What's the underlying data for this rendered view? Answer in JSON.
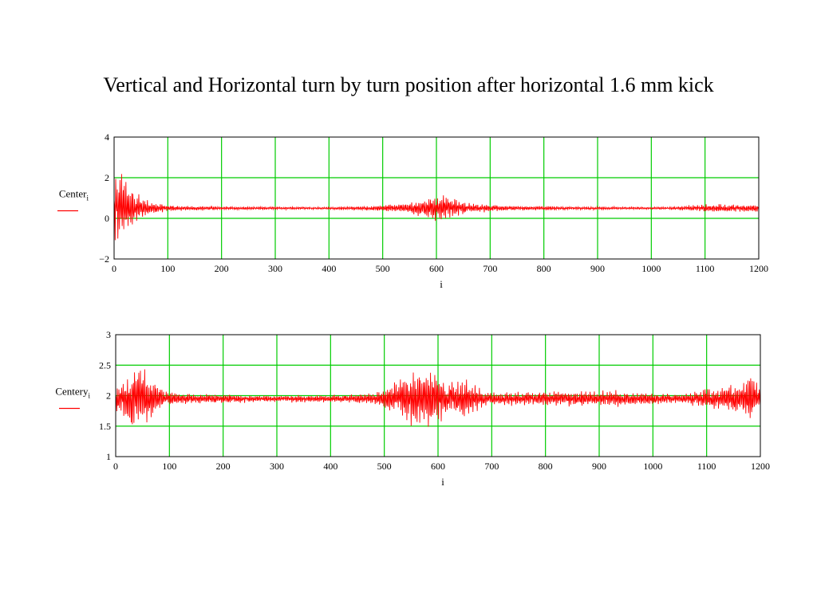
{
  "title": "Vertical and Horizontal turn by turn position after horizontal 1.6 mm kick",
  "colors": {
    "trace": "#ff0000",
    "grid": "#00cc00",
    "frame": "#000000"
  },
  "chart_data": [
    {
      "type": "line",
      "ylabel": "Center",
      "ylabel_sub": "i",
      "xlabel": "i",
      "xlim": [
        0,
        1200
      ],
      "ylim": [
        -2,
        4
      ],
      "x_ticks": [
        "0",
        "100",
        "200",
        "300",
        "400",
        "500",
        "600",
        "700",
        "800",
        "900",
        "1000",
        "1100",
        "1200"
      ],
      "y_ticks": [
        "−2",
        "0",
        "2",
        "4"
      ],
      "grid": true,
      "baseline": 0.5,
      "envelope": {
        "x": [
          0,
          5,
          15,
          30,
          50,
          80,
          120,
          200,
          300,
          400,
          450,
          500,
          540,
          580,
          610,
          630,
          660,
          700,
          800,
          900,
          1000,
          1050,
          1100,
          1130,
          1160,
          1200
        ],
        "amp": [
          1.6,
          1.7,
          1.5,
          1.0,
          0.5,
          0.22,
          0.12,
          0.08,
          0.06,
          0.06,
          0.08,
          0.14,
          0.22,
          0.45,
          0.6,
          0.5,
          0.25,
          0.14,
          0.09,
          0.07,
          0.05,
          0.08,
          0.18,
          0.2,
          0.15,
          0.2
        ]
      }
    },
    {
      "type": "line",
      "ylabel": "Centery",
      "ylabel_sub": "i",
      "xlabel": "i",
      "xlim": [
        0,
        1200
      ],
      "ylim": [
        1,
        3
      ],
      "x_ticks": [
        "0",
        "100",
        "200",
        "300",
        "400",
        "500",
        "600",
        "700",
        "800",
        "900",
        "1000",
        "1100",
        "1200"
      ],
      "y_ticks": [
        "1",
        "1.5",
        "2",
        "2.5",
        "3"
      ],
      "grid": true,
      "baseline": 1.95,
      "envelope": {
        "x": [
          0,
          10,
          20,
          30,
          40,
          50,
          70,
          90,
          120,
          200,
          300,
          400,
          480,
          520,
          560,
          580,
          600,
          620,
          640,
          660,
          690,
          720,
          800,
          900,
          1000,
          1050,
          1100,
          1150,
          1180,
          1200
        ],
        "amp": [
          0.2,
          0.3,
          0.4,
          0.5,
          0.55,
          0.45,
          0.3,
          0.15,
          0.08,
          0.07,
          0.05,
          0.06,
          0.08,
          0.25,
          0.45,
          0.48,
          0.4,
          0.25,
          0.3,
          0.25,
          0.12,
          0.1,
          0.12,
          0.12,
          0.1,
          0.08,
          0.15,
          0.22,
          0.35,
          0.3
        ]
      }
    }
  ]
}
